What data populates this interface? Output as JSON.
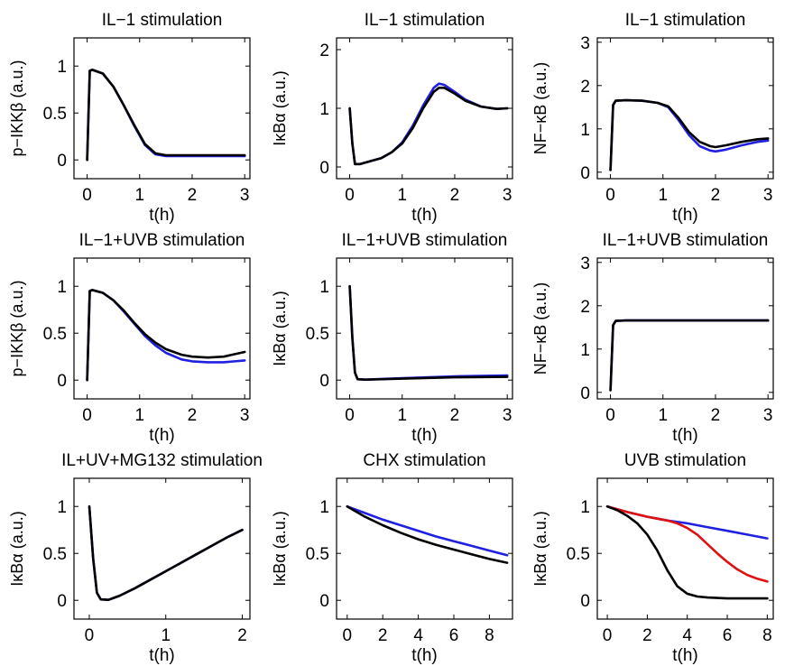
{
  "colors": {
    "blue": "#2020e0",
    "black": "#000000",
    "red": "#e01010"
  },
  "chart_data": [
    {
      "type": "line",
      "title": "IL−1 stimulation",
      "xlabel": "t(h)",
      "ylabel": "p−IKKβ (a.u.)",
      "xlim": [
        -0.25,
        3.1
      ],
      "ylim": [
        -0.2,
        1.3
      ],
      "xticks": [
        0,
        1,
        2,
        3
      ],
      "yticks": [
        0,
        0.5,
        1
      ],
      "series": [
        {
          "color": "blue",
          "x": [
            0,
            0.05,
            0.1,
            0.3,
            0.5,
            0.7,
            0.9,
            1.1,
            1.3,
            1.5,
            2,
            2.5,
            3
          ],
          "y": [
            0,
            0.95,
            0.96,
            0.92,
            0.78,
            0.58,
            0.36,
            0.16,
            0.06,
            0.04,
            0.04,
            0.04,
            0.04
          ]
        },
        {
          "color": "black",
          "x": [
            0,
            0.05,
            0.1,
            0.3,
            0.5,
            0.7,
            0.9,
            1.1,
            1.3,
            1.5,
            2,
            2.5,
            3
          ],
          "y": [
            0,
            0.95,
            0.96,
            0.92,
            0.78,
            0.58,
            0.37,
            0.17,
            0.07,
            0.05,
            0.05,
            0.05,
            0.05
          ]
        }
      ]
    },
    {
      "type": "line",
      "title": "IL−1 stimulation",
      "xlabel": "t(h)",
      "ylabel": "IκBα (a.u.)",
      "xlim": [
        -0.25,
        3.1
      ],
      "ylim": [
        -0.2,
        2.2
      ],
      "xticks": [
        0,
        1,
        2,
        3
      ],
      "yticks": [
        0,
        1,
        2
      ],
      "series": [
        {
          "color": "blue",
          "x": [
            0,
            0.05,
            0.1,
            0.2,
            0.4,
            0.6,
            0.8,
            1,
            1.2,
            1.4,
            1.6,
            1.7,
            1.8,
            2,
            2.2,
            2.5,
            2.8,
            3
          ],
          "y": [
            1,
            0.4,
            0.05,
            0.05,
            0.1,
            0.15,
            0.25,
            0.42,
            0.7,
            1.05,
            1.35,
            1.42,
            1.4,
            1.28,
            1.15,
            1.03,
            0.99,
            1
          ]
        },
        {
          "color": "black",
          "x": [
            0,
            0.05,
            0.1,
            0.2,
            0.4,
            0.6,
            0.8,
            1,
            1.2,
            1.4,
            1.6,
            1.7,
            1.8,
            2,
            2.2,
            2.5,
            2.8,
            3
          ],
          "y": [
            1,
            0.4,
            0.05,
            0.05,
            0.1,
            0.15,
            0.25,
            0.4,
            0.66,
            1.0,
            1.28,
            1.35,
            1.35,
            1.25,
            1.13,
            1.03,
            0.99,
            1
          ]
        }
      ]
    },
    {
      "type": "line",
      "title": "IL−1 stimulation",
      "xlabel": "t(h)",
      "ylabel": "NF−κB (a.u.)",
      "xlim": [
        -0.25,
        3.1
      ],
      "ylim": [
        -0.15,
        3.1
      ],
      "xticks": [
        0,
        1,
        2,
        3
      ],
      "yticks": [
        0,
        1,
        2,
        3
      ],
      "series": [
        {
          "color": "blue",
          "x": [
            0,
            0.05,
            0.1,
            0.3,
            0.6,
            0.9,
            1.1,
            1.3,
            1.5,
            1.7,
            1.9,
            2,
            2.2,
            2.5,
            2.8,
            3
          ],
          "y": [
            0.05,
            1.55,
            1.65,
            1.66,
            1.65,
            1.6,
            1.5,
            1.2,
            0.85,
            0.6,
            0.5,
            0.48,
            0.52,
            0.62,
            0.7,
            0.73
          ]
        },
        {
          "color": "black",
          "x": [
            0,
            0.05,
            0.1,
            0.3,
            0.6,
            0.9,
            1.1,
            1.3,
            1.5,
            1.7,
            1.9,
            2,
            2.2,
            2.5,
            2.8,
            3
          ],
          "y": [
            0.05,
            1.55,
            1.65,
            1.66,
            1.65,
            1.6,
            1.52,
            1.25,
            0.92,
            0.7,
            0.6,
            0.58,
            0.62,
            0.7,
            0.76,
            0.78
          ]
        }
      ]
    },
    {
      "type": "line",
      "title": "IL−1+UVB stimulation",
      "xlabel": "t(h)",
      "ylabel": "p−IKKβ (a.u.)",
      "xlim": [
        -0.25,
        3.1
      ],
      "ylim": [
        -0.2,
        1.3
      ],
      "xticks": [
        0,
        1,
        2,
        3
      ],
      "yticks": [
        0,
        0.5,
        1
      ],
      "series": [
        {
          "color": "blue",
          "x": [
            0,
            0.05,
            0.1,
            0.3,
            0.5,
            0.7,
            0.9,
            1.1,
            1.3,
            1.5,
            1.8,
            2,
            2.3,
            2.6,
            3
          ],
          "y": [
            0,
            0.95,
            0.96,
            0.93,
            0.85,
            0.73,
            0.6,
            0.47,
            0.37,
            0.29,
            0.22,
            0.2,
            0.19,
            0.19,
            0.21
          ]
        },
        {
          "color": "black",
          "x": [
            0,
            0.05,
            0.1,
            0.3,
            0.5,
            0.7,
            0.9,
            1.1,
            1.3,
            1.5,
            1.8,
            2,
            2.3,
            2.6,
            3
          ],
          "y": [
            0,
            0.95,
            0.96,
            0.93,
            0.85,
            0.74,
            0.61,
            0.49,
            0.4,
            0.33,
            0.27,
            0.25,
            0.24,
            0.25,
            0.3
          ]
        }
      ]
    },
    {
      "type": "line",
      "title": "IL−1+UVB stimulation",
      "xlabel": "t(h)",
      "ylabel": "IκBα (a.u.)",
      "xlim": [
        -0.25,
        3.1
      ],
      "ylim": [
        -0.2,
        1.3
      ],
      "xticks": [
        0,
        1,
        2,
        3
      ],
      "yticks": [
        0,
        0.5,
        1
      ],
      "series": [
        {
          "color": "blue",
          "x": [
            0,
            0.05,
            0.1,
            0.15,
            0.3,
            1,
            2,
            3
          ],
          "y": [
            1,
            0.45,
            0.08,
            0.01,
            0.005,
            0.02,
            0.04,
            0.05
          ]
        },
        {
          "color": "black",
          "x": [
            0,
            0.05,
            0.1,
            0.15,
            0.3,
            1,
            2,
            3
          ],
          "y": [
            1,
            0.45,
            0.08,
            0.01,
            0.005,
            0.015,
            0.03,
            0.035
          ]
        }
      ]
    },
    {
      "type": "line",
      "title": "IL−1+UVB stimulation",
      "xlabel": "t(h)",
      "ylabel": "NF−κB (a.u.)",
      "xlim": [
        -0.25,
        3.1
      ],
      "ylim": [
        -0.15,
        3.1
      ],
      "xticks": [
        0,
        1,
        2,
        3
      ],
      "yticks": [
        0,
        1,
        2,
        3
      ],
      "series": [
        {
          "color": "blue",
          "x": [
            0,
            0.05,
            0.1,
            0.3,
            1,
            2,
            3
          ],
          "y": [
            0.05,
            1.55,
            1.65,
            1.66,
            1.66,
            1.66,
            1.66
          ]
        },
        {
          "color": "black",
          "x": [
            0,
            0.05,
            0.1,
            0.3,
            1,
            2,
            3
          ],
          "y": [
            0.05,
            1.55,
            1.65,
            1.66,
            1.66,
            1.66,
            1.66
          ]
        }
      ]
    },
    {
      "type": "line",
      "title": "IL+UV+MG132 stimulation",
      "xlabel": "t(h)",
      "ylabel": "IκBα (a.u.)",
      "xlim": [
        -0.2,
        2.1
      ],
      "ylim": [
        -0.2,
        1.3
      ],
      "xticks": [
        0,
        1,
        2
      ],
      "yticks": [
        0,
        0.5,
        1
      ],
      "series": [
        {
          "color": "blue",
          "x": [
            0,
            0.05,
            0.1,
            0.15,
            0.25,
            0.4,
            0.6,
            0.8,
            1,
            1.2,
            1.4,
            1.6,
            1.8,
            2
          ],
          "y": [
            1,
            0.45,
            0.08,
            0.01,
            0.005,
            0.05,
            0.13,
            0.22,
            0.31,
            0.4,
            0.49,
            0.58,
            0.67,
            0.75
          ]
        },
        {
          "color": "black",
          "x": [
            0,
            0.05,
            0.1,
            0.15,
            0.25,
            0.4,
            0.6,
            0.8,
            1,
            1.2,
            1.4,
            1.6,
            1.8,
            2
          ],
          "y": [
            1,
            0.45,
            0.08,
            0.01,
            0.005,
            0.05,
            0.13,
            0.22,
            0.31,
            0.4,
            0.49,
            0.58,
            0.67,
            0.75
          ]
        }
      ]
    },
    {
      "type": "line",
      "title": "CHX stimulation",
      "xlabel": "t(h)",
      "ylabel": "IκBα (a.u.)",
      "xlim": [
        -0.6,
        9.3
      ],
      "ylim": [
        -0.2,
        1.3
      ],
      "xticks": [
        0,
        2,
        4,
        6,
        8
      ],
      "yticks": [
        0,
        0.5,
        1
      ],
      "series": [
        {
          "color": "blue",
          "x": [
            0,
            1,
            2,
            3,
            4,
            5,
            6,
            7,
            8,
            9
          ],
          "y": [
            1,
            0.93,
            0.86,
            0.8,
            0.74,
            0.68,
            0.63,
            0.58,
            0.53,
            0.48
          ]
        },
        {
          "color": "black",
          "x": [
            0,
            1,
            2,
            3,
            4,
            5,
            6,
            7,
            8,
            9
          ],
          "y": [
            1,
            0.89,
            0.8,
            0.72,
            0.65,
            0.59,
            0.54,
            0.49,
            0.44,
            0.4
          ]
        }
      ]
    },
    {
      "type": "line",
      "title": "UVB stimulation",
      "xlabel": "t(h)",
      "ylabel": "IκBα (a.u.)",
      "xlim": [
        -0.5,
        8.3
      ],
      "ylim": [
        -0.2,
        1.3
      ],
      "xticks": [
        0,
        2,
        4,
        6,
        8
      ],
      "yticks": [
        0,
        0.5,
        1
      ],
      "series": [
        {
          "color": "blue",
          "x": [
            0,
            1,
            2,
            3,
            4,
            5,
            6,
            7,
            8
          ],
          "y": [
            1,
            0.94,
            0.89,
            0.85,
            0.82,
            0.78,
            0.74,
            0.7,
            0.66
          ]
        },
        {
          "color": "red",
          "x": [
            0,
            1,
            2,
            2.5,
            3,
            3.5,
            4,
            4.5,
            5,
            5.5,
            6,
            6.5,
            7,
            7.5,
            8
          ],
          "y": [
            1,
            0.94,
            0.89,
            0.87,
            0.85,
            0.82,
            0.77,
            0.7,
            0.6,
            0.5,
            0.41,
            0.33,
            0.27,
            0.23,
            0.2
          ]
        },
        {
          "color": "black",
          "x": [
            0,
            0.5,
            1,
            1.5,
            2,
            2.5,
            3,
            3.5,
            4,
            4.5,
            5,
            6,
            7,
            8
          ],
          "y": [
            1,
            0.96,
            0.9,
            0.82,
            0.7,
            0.53,
            0.32,
            0.15,
            0.07,
            0.04,
            0.03,
            0.02,
            0.02,
            0.02
          ]
        }
      ]
    }
  ]
}
